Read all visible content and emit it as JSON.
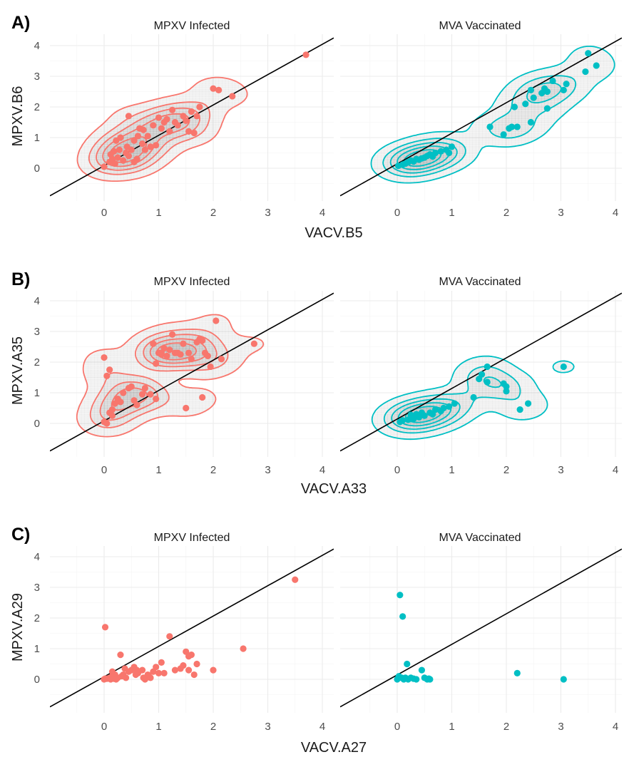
{
  "colors": {
    "infected": "#F8766D",
    "vaccinated": "#00BFC4",
    "density_fill": "#808080",
    "identity_line": "#000000",
    "grid": "#ebebeb"
  },
  "chart_data": [
    {
      "type": "scatter",
      "tag": "A)",
      "xlabel": "VACV.B5",
      "ylabel": "MPXV.B6",
      "xlim": [
        -1,
        4.2
      ],
      "ylim": [
        -1,
        4.2
      ],
      "x_ticks": [
        "0",
        "1",
        "2",
        "3",
        "4"
      ],
      "y_ticks": [
        "0",
        "1",
        "2",
        "3",
        "4"
      ],
      "grid": true,
      "reference_line": "y = x",
      "facets": [
        {
          "title": "MPXV Infected",
          "color": "infected",
          "density_contours": true,
          "points": [
            [
              0.0,
              0.05
            ],
            [
              0.1,
              0.2
            ],
            [
              0.12,
              0.45
            ],
            [
              0.15,
              0.3
            ],
            [
              0.18,
              0.55
            ],
            [
              0.2,
              0.15
            ],
            [
              0.22,
              0.9
            ],
            [
              0.25,
              0.35
            ],
            [
              0.3,
              1.0
            ],
            [
              0.35,
              0.25
            ],
            [
              0.4,
              0.5
            ],
            [
              0.42,
              0.7
            ],
            [
              0.45,
              0.4
            ],
            [
              0.5,
              0.6
            ],
            [
              0.55,
              0.9
            ],
            [
              0.6,
              0.3
            ],
            [
              0.62,
              1.05
            ],
            [
              0.65,
              1.3
            ],
            [
              0.7,
              0.8
            ],
            [
              0.72,
              1.25
            ],
            [
              0.75,
              0.6
            ],
            [
              0.8,
              1.05
            ],
            [
              0.85,
              0.7
            ],
            [
              0.9,
              1.4
            ],
            [
              0.95,
              0.75
            ],
            [
              1.0,
              1.65
            ],
            [
              1.05,
              1.3
            ],
            [
              1.1,
              1.5
            ],
            [
              1.15,
              1.6
            ],
            [
              1.2,
              1.2
            ],
            [
              1.25,
              1.9
            ],
            [
              1.3,
              1.5
            ],
            [
              1.35,
              1.4
            ],
            [
              1.45,
              1.7
            ],
            [
              1.5,
              1.55
            ],
            [
              1.55,
              1.2
            ],
            [
              1.6,
              1.85
            ],
            [
              1.65,
              1.15
            ],
            [
              1.7,
              1.7
            ],
            [
              1.75,
              2.0
            ],
            [
              0.45,
              1.7
            ],
            [
              0.28,
              0.6
            ],
            [
              0.55,
              0.2
            ],
            [
              2.0,
              2.6
            ],
            [
              2.1,
              2.55
            ],
            [
              2.35,
              2.35
            ],
            [
              3.7,
              3.7
            ]
          ]
        },
        {
          "title": "MVA Vaccinated",
          "color": "vaccinated",
          "density_contours": true,
          "points": [
            [
              0.02,
              0.08
            ],
            [
              0.1,
              0.12
            ],
            [
              0.15,
              0.15
            ],
            [
              0.2,
              0.2
            ],
            [
              0.3,
              0.22
            ],
            [
              0.35,
              0.3
            ],
            [
              0.4,
              0.28
            ],
            [
              0.5,
              0.35
            ],
            [
              0.55,
              0.4
            ],
            [
              0.6,
              0.45
            ],
            [
              0.65,
              0.38
            ],
            [
              0.7,
              0.5
            ],
            [
              0.8,
              0.55
            ],
            [
              0.9,
              0.6
            ],
            [
              0.95,
              0.5
            ],
            [
              1.0,
              0.7
            ],
            [
              1.7,
              1.35
            ],
            [
              1.95,
              1.1
            ],
            [
              2.05,
              1.3
            ],
            [
              2.1,
              1.35
            ],
            [
              2.15,
              2.0
            ],
            [
              2.35,
              2.1
            ],
            [
              2.45,
              2.55
            ],
            [
              2.5,
              2.3
            ],
            [
              2.45,
              1.5
            ],
            [
              2.65,
              2.45
            ],
            [
              2.7,
              2.6
            ],
            [
              2.75,
              1.95
            ],
            [
              2.85,
              2.85
            ],
            [
              3.05,
              2.55
            ],
            [
              3.1,
              2.75
            ],
            [
              3.45,
              3.15
            ],
            [
              3.5,
              3.75
            ],
            [
              3.65,
              3.35
            ],
            [
              2.2,
              1.35
            ],
            [
              2.75,
              2.5
            ],
            [
              0.25,
              0.25
            ],
            [
              0.45,
              0.32
            ]
          ]
        }
      ]
    },
    {
      "type": "scatter",
      "tag": "B)",
      "xlabel": "VACV.A33",
      "ylabel": "MPXV.A35",
      "xlim": [
        -1,
        4.2
      ],
      "ylim": [
        -1,
        4.2
      ],
      "x_ticks": [
        "0",
        "1",
        "2",
        "3",
        "4"
      ],
      "y_ticks": [
        "0",
        "1",
        "2",
        "3",
        "4"
      ],
      "grid": true,
      "reference_line": "y = x",
      "facets": [
        {
          "title": "MPXV Infected",
          "color": "infected",
          "density_contours": true,
          "points": [
            [
              0.0,
              2.15
            ],
            [
              0.05,
              1.55
            ],
            [
              0.1,
              1.75
            ],
            [
              0.0,
              0.05
            ],
            [
              0.05,
              0.0
            ],
            [
              0.1,
              0.35
            ],
            [
              0.15,
              0.45
            ],
            [
              0.2,
              0.65
            ],
            [
              0.25,
              0.8
            ],
            [
              0.3,
              0.7
            ],
            [
              0.35,
              1.0
            ],
            [
              0.45,
              1.15
            ],
            [
              0.5,
              1.2
            ],
            [
              0.55,
              0.75
            ],
            [
              0.6,
              0.6
            ],
            [
              0.7,
              0.95
            ],
            [
              0.75,
              1.15
            ],
            [
              0.85,
              0.95
            ],
            [
              0.9,
              2.6
            ],
            [
              0.95,
              1.95
            ],
            [
              0.95,
              0.8
            ],
            [
              1.0,
              2.3
            ],
            [
              1.05,
              2.25
            ],
            [
              1.1,
              2.45
            ],
            [
              1.15,
              2.2
            ],
            [
              1.2,
              2.4
            ],
            [
              1.25,
              2.9
            ],
            [
              1.3,
              2.3
            ],
            [
              1.4,
              2.25
            ],
            [
              1.45,
              2.6
            ],
            [
              1.5,
              0.5
            ],
            [
              1.55,
              2.3
            ],
            [
              1.6,
              2.1
            ],
            [
              1.7,
              2.65
            ],
            [
              1.75,
              2.75
            ],
            [
              1.8,
              2.7
            ],
            [
              1.85,
              2.3
            ],
            [
              1.9,
              2.2
            ],
            [
              1.95,
              1.85
            ],
            [
              2.05,
              3.35
            ],
            [
              2.15,
              2.1
            ],
            [
              1.8,
              0.85
            ],
            [
              2.75,
              2.6
            ],
            [
              0.15,
              0.25
            ],
            [
              1.35,
              2.3
            ],
            [
              1.05,
              2.3
            ]
          ]
        },
        {
          "title": "MVA Vaccinated",
          "color": "vaccinated",
          "density_contours": true,
          "points": [
            [
              0.05,
              0.05
            ],
            [
              0.1,
              0.1
            ],
            [
              0.2,
              0.12
            ],
            [
              0.3,
              0.15
            ],
            [
              0.35,
              0.3
            ],
            [
              0.4,
              0.2
            ],
            [
              0.5,
              0.25
            ],
            [
              0.6,
              0.35
            ],
            [
              0.65,
              0.3
            ],
            [
              0.7,
              0.45
            ],
            [
              0.8,
              0.4
            ],
            [
              0.85,
              0.5
            ],
            [
              0.95,
              0.55
            ],
            [
              1.05,
              0.65
            ],
            [
              1.4,
              0.85
            ],
            [
              1.5,
              1.45
            ],
            [
              1.55,
              1.6
            ],
            [
              1.65,
              1.35
            ],
            [
              1.65,
              1.85
            ],
            [
              1.95,
              1.3
            ],
            [
              2.0,
              1.05
            ],
            [
              2.0,
              1.2
            ],
            [
              2.25,
              0.45
            ],
            [
              2.4,
              0.65
            ],
            [
              3.05,
              1.85
            ],
            [
              0.45,
              0.35
            ],
            [
              0.25,
              0.28
            ]
          ]
        }
      ]
    },
    {
      "type": "scatter",
      "tag": "C)",
      "xlabel": "VACV.A27",
      "ylabel": "MPXV.A29",
      "xlim": [
        -1,
        4.2
      ],
      "ylim": [
        -1,
        4.2
      ],
      "x_ticks": [
        "0",
        "1",
        "2",
        "3",
        "4"
      ],
      "y_ticks": [
        "0",
        "1",
        "2",
        "3",
        "4"
      ],
      "grid": true,
      "reference_line": "y = x",
      "facets": [
        {
          "title": "MPXV Infected",
          "color": "infected",
          "density_contours": false,
          "points": [
            [
              0.0,
              0.0
            ],
            [
              0.02,
              1.7
            ],
            [
              0.05,
              0.02
            ],
            [
              0.1,
              0.05
            ],
            [
              0.12,
              0.0
            ],
            [
              0.15,
              0.1
            ],
            [
              0.15,
              0.25
            ],
            [
              0.18,
              0.02
            ],
            [
              0.2,
              0.15
            ],
            [
              0.22,
              0.0
            ],
            [
              0.25,
              0.05
            ],
            [
              0.3,
              0.8
            ],
            [
              0.32,
              0.1
            ],
            [
              0.35,
              0.15
            ],
            [
              0.38,
              0.35
            ],
            [
              0.4,
              0.05
            ],
            [
              0.45,
              0.25
            ],
            [
              0.5,
              0.3
            ],
            [
              0.55,
              0.4
            ],
            [
              0.58,
              0.15
            ],
            [
              0.62,
              0.2
            ],
            [
              0.7,
              0.3
            ],
            [
              0.72,
              0.05
            ],
            [
              0.75,
              0.0
            ],
            [
              0.8,
              0.15
            ],
            [
              0.82,
              0.1
            ],
            [
              0.85,
              0.05
            ],
            [
              0.9,
              0.25
            ],
            [
              0.95,
              0.4
            ],
            [
              1.0,
              0.2
            ],
            [
              1.05,
              0.55
            ],
            [
              1.1,
              0.2
            ],
            [
              1.2,
              1.4
            ],
            [
              1.3,
              0.3
            ],
            [
              1.4,
              0.35
            ],
            [
              1.45,
              0.45
            ],
            [
              1.5,
              0.9
            ],
            [
              1.55,
              0.75
            ],
            [
              1.55,
              0.3
            ],
            [
              1.6,
              0.8
            ],
            [
              1.65,
              0.15
            ],
            [
              1.7,
              0.5
            ],
            [
              2.0,
              0.3
            ],
            [
              2.55,
              1.0
            ],
            [
              3.5,
              3.25
            ],
            [
              0.02,
              0.02
            ],
            [
              0.6,
              0.3
            ]
          ]
        },
        {
          "title": "MVA Vaccinated",
          "color": "vaccinated",
          "density_contours": false,
          "points": [
            [
              0.0,
              0.0
            ],
            [
              0.03,
              0.1
            ],
            [
              0.05,
              2.75
            ],
            [
              0.08,
              0.05
            ],
            [
              0.1,
              2.05
            ],
            [
              0.12,
              0.0
            ],
            [
              0.15,
              0.05
            ],
            [
              0.18,
              0.5
            ],
            [
              0.2,
              0.0
            ],
            [
              0.25,
              0.05
            ],
            [
              0.3,
              0.02
            ],
            [
              0.35,
              0.0
            ],
            [
              0.45,
              0.3
            ],
            [
              0.5,
              0.05
            ],
            [
              0.55,
              0.0
            ],
            [
              0.58,
              0.02
            ],
            [
              0.6,
              0.0
            ],
            [
              2.2,
              0.2
            ],
            [
              3.05,
              0.0
            ],
            [
              0.02,
              0.05
            ]
          ]
        }
      ]
    }
  ]
}
